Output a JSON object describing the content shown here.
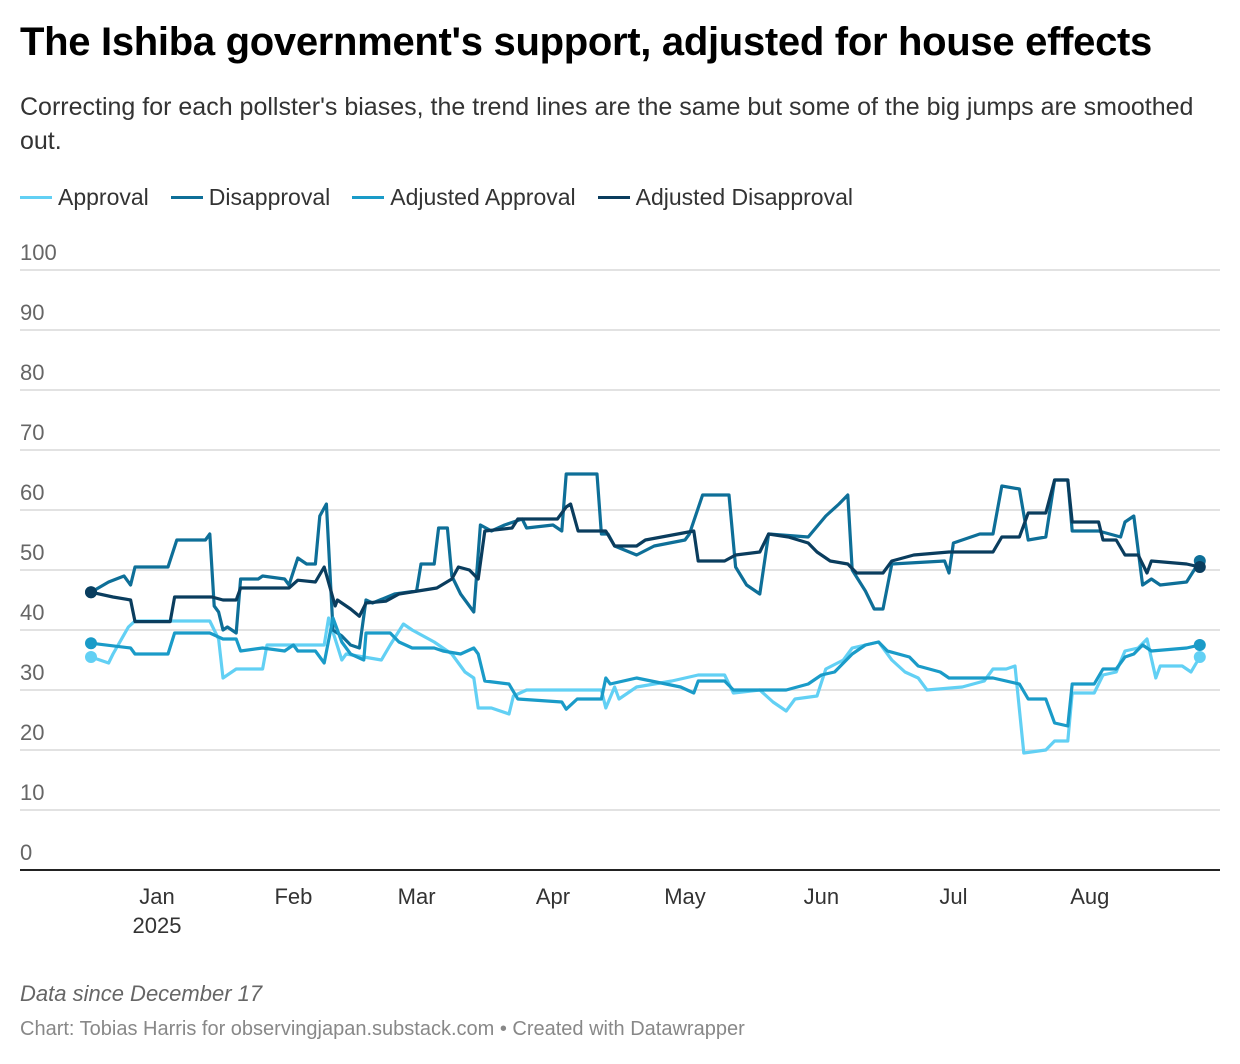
{
  "chart_data": {
    "type": "line",
    "title": "The Ishiba government's support, adjusted for house effects",
    "subtitle": "Correcting for each pollster's biases, the trend lines are the same but some of the big jumps are smoothed out.",
    "x_unit": "days since December 17, 2024",
    "xlim": [
      0,
      252
    ],
    "ylim": [
      0,
      100
    ],
    "yticks": [
      0,
      10,
      20,
      30,
      40,
      50,
      60,
      70,
      80,
      90,
      100
    ],
    "xticks": [
      {
        "day": 15,
        "label": "Jan",
        "sublabel": "2025"
      },
      {
        "day": 46,
        "label": "Feb"
      },
      {
        "day": 74,
        "label": "Mar"
      },
      {
        "day": 105,
        "label": "Apr"
      },
      {
        "day": 135,
        "label": "May"
      },
      {
        "day": 166,
        "label": "Jun"
      },
      {
        "day": 196,
        "label": "Jul"
      },
      {
        "day": 227,
        "label": "Aug"
      }
    ],
    "legend_position": "top-left",
    "grid": true,
    "series": [
      {
        "name": "Approval",
        "color": "#62d0f4",
        "points": [
          [
            0,
            35.5
          ],
          [
            4,
            34.5
          ],
          [
            5,
            36
          ],
          [
            8.5,
            40.5
          ],
          [
            10,
            41.5
          ],
          [
            27,
            41.5
          ],
          [
            29,
            38.5
          ],
          [
            30,
            32
          ],
          [
            33,
            33.5
          ],
          [
            39,
            33.5
          ],
          [
            40,
            37.5
          ],
          [
            53,
            37.5
          ],
          [
            54,
            42
          ],
          [
            57,
            35
          ],
          [
            58,
            36
          ],
          [
            66,
            35
          ],
          [
            68,
            37.5
          ],
          [
            71,
            41
          ],
          [
            73,
            40
          ],
          [
            78,
            38
          ],
          [
            82,
            36
          ],
          [
            85,
            33
          ],
          [
            87,
            32
          ],
          [
            88,
            27
          ],
          [
            91,
            27
          ],
          [
            95,
            26
          ],
          [
            96,
            29
          ],
          [
            99,
            30
          ],
          [
            116,
            30
          ],
          [
            117,
            27
          ],
          [
            119,
            30.5
          ],
          [
            120,
            28.5
          ],
          [
            124,
            30.5
          ],
          [
            132,
            31.5
          ],
          [
            138,
            32.5
          ],
          [
            144,
            32.5
          ],
          [
            146,
            29.5
          ],
          [
            152,
            30
          ],
          [
            155,
            28
          ],
          [
            158,
            26.5
          ],
          [
            160,
            28.5
          ],
          [
            165,
            29
          ],
          [
            167,
            33.5
          ],
          [
            171,
            35
          ],
          [
            173,
            37
          ],
          [
            179,
            38
          ],
          [
            182,
            35
          ],
          [
            185,
            33
          ],
          [
            188,
            32
          ],
          [
            190,
            30
          ],
          [
            198,
            30.5
          ],
          [
            203,
            31.5
          ],
          [
            205,
            33.5
          ],
          [
            208,
            33.5
          ],
          [
            210,
            34
          ],
          [
            212,
            19.5
          ],
          [
            217,
            20
          ],
          [
            219,
            21.5
          ],
          [
            222,
            21.5
          ],
          [
            223,
            29.5
          ],
          [
            228,
            29.5
          ],
          [
            230,
            32.5
          ],
          [
            233,
            33
          ],
          [
            235,
            36.5
          ],
          [
            238,
            37
          ],
          [
            240,
            38.5
          ],
          [
            242,
            32
          ],
          [
            243,
            34
          ],
          [
            248,
            34
          ],
          [
            250,
            33
          ],
          [
            252,
            35.5
          ]
        ]
      },
      {
        "name": "Disapproval",
        "color": "#0e6f98",
        "points": [
          [
            0,
            46.3
          ],
          [
            4,
            48
          ],
          [
            7.5,
            49
          ],
          [
            9,
            47.5
          ],
          [
            10,
            50.5
          ],
          [
            17.5,
            50.5
          ],
          [
            19.5,
            55
          ],
          [
            26,
            55
          ],
          [
            27,
            56
          ],
          [
            28,
            44
          ],
          [
            29,
            43
          ],
          [
            30,
            40
          ],
          [
            31,
            40.5
          ],
          [
            33,
            39.5
          ],
          [
            34,
            48.5
          ],
          [
            38,
            48.5
          ],
          [
            39,
            49
          ],
          [
            44,
            48.5
          ],
          [
            45,
            47.5
          ],
          [
            47,
            52
          ],
          [
            49,
            51
          ],
          [
            51,
            51
          ],
          [
            52,
            59
          ],
          [
            53.5,
            61
          ],
          [
            55,
            40
          ],
          [
            57,
            39
          ],
          [
            59,
            37.5
          ],
          [
            61,
            37
          ],
          [
            62.5,
            45
          ],
          [
            64,
            44.5
          ],
          [
            69,
            46
          ],
          [
            74,
            46.5
          ],
          [
            75,
            51
          ],
          [
            78,
            51
          ],
          [
            79,
            57
          ],
          [
            81,
            57
          ],
          [
            82,
            49
          ],
          [
            84,
            46
          ],
          [
            87,
            43
          ],
          [
            88.5,
            57.5
          ],
          [
            91,
            56.5
          ],
          [
            94,
            57.5
          ],
          [
            98,
            58.5
          ],
          [
            99,
            57
          ],
          [
            105,
            57.5
          ],
          [
            107,
            56.5
          ],
          [
            108,
            66
          ],
          [
            115,
            66
          ],
          [
            116,
            56
          ],
          [
            117.5,
            56
          ],
          [
            119,
            54
          ],
          [
            124,
            52.5
          ],
          [
            128,
            54
          ],
          [
            135,
            55
          ],
          [
            136,
            56
          ],
          [
            139,
            62.5
          ],
          [
            145,
            62.5
          ],
          [
            146.5,
            50.5
          ],
          [
            149,
            47.5
          ],
          [
            152,
            46
          ],
          [
            154,
            56
          ],
          [
            163,
            55.5
          ],
          [
            167,
            59
          ],
          [
            170,
            61
          ],
          [
            172,
            62.5
          ],
          [
            173,
            50
          ],
          [
            176,
            46.5
          ],
          [
            178,
            43.5
          ],
          [
            180,
            43.5
          ],
          [
            182,
            51
          ],
          [
            194,
            51.5
          ],
          [
            195,
            49.5
          ],
          [
            196,
            54.5
          ],
          [
            202,
            56
          ],
          [
            205,
            56
          ],
          [
            207,
            64
          ],
          [
            211,
            63.5
          ],
          [
            213,
            55
          ],
          [
            217,
            55.5
          ],
          [
            219,
            65
          ],
          [
            222,
            65
          ],
          [
            223,
            56.5
          ],
          [
            229,
            56.5
          ],
          [
            234,
            55.5
          ],
          [
            235,
            58
          ],
          [
            237,
            59
          ],
          [
            239,
            47.5
          ],
          [
            241,
            48.5
          ],
          [
            243,
            47.5
          ],
          [
            249,
            48
          ],
          [
            252,
            51.5
          ]
        ]
      },
      {
        "name": "Adjusted Approval",
        "color": "#1a9bc8",
        "points": [
          [
            0,
            37.8
          ],
          [
            9,
            37
          ],
          [
            10,
            36
          ],
          [
            17.5,
            36
          ],
          [
            19,
            39.5
          ],
          [
            27,
            39.5
          ],
          [
            30,
            38.5
          ],
          [
            33,
            38.5
          ],
          [
            34,
            36.5
          ],
          [
            39,
            37
          ],
          [
            44,
            36.5
          ],
          [
            46,
            37.5
          ],
          [
            47,
            36.5
          ],
          [
            51,
            36.5
          ],
          [
            53,
            34.5
          ],
          [
            55,
            42
          ],
          [
            57,
            38
          ],
          [
            59,
            36
          ],
          [
            62,
            35
          ],
          [
            62.5,
            39.5
          ],
          [
            68,
            39.5
          ],
          [
            70,
            38
          ],
          [
            73,
            37
          ],
          [
            78,
            37
          ],
          [
            80,
            36.5
          ],
          [
            84,
            36
          ],
          [
            87,
            37
          ],
          [
            88,
            36
          ],
          [
            89.5,
            31.5
          ],
          [
            95,
            31
          ],
          [
            97,
            28.5
          ],
          [
            107,
            28
          ],
          [
            108,
            26.8
          ],
          [
            110.5,
            28.5
          ],
          [
            116,
            28.5
          ],
          [
            117,
            32
          ],
          [
            118,
            31
          ],
          [
            124,
            32
          ],
          [
            134,
            30.5
          ],
          [
            137,
            29.5
          ],
          [
            138,
            31.5
          ],
          [
            144,
            31.5
          ],
          [
            146,
            30
          ],
          [
            153,
            30
          ],
          [
            158,
            30
          ],
          [
            163,
            31
          ],
          [
            166,
            32.5
          ],
          [
            169,
            33
          ],
          [
            173,
            36
          ],
          [
            176,
            37.5
          ],
          [
            179,
            38
          ],
          [
            181,
            36.5
          ],
          [
            186,
            35.5
          ],
          [
            188,
            34
          ],
          [
            193,
            33
          ],
          [
            195,
            32
          ],
          [
            205,
            32
          ],
          [
            211,
            31
          ],
          [
            213,
            28.5
          ],
          [
            217,
            28.5
          ],
          [
            219,
            24.5
          ],
          [
            222,
            24
          ],
          [
            223,
            31
          ],
          [
            228,
            31
          ],
          [
            230,
            33.5
          ],
          [
            233,
            33.5
          ],
          [
            235,
            35.5
          ],
          [
            237,
            36
          ],
          [
            239,
            37.5
          ],
          [
            241,
            36.5
          ],
          [
            249,
            37
          ],
          [
            252,
            37.5
          ]
        ]
      },
      {
        "name": "Adjusted Disapproval",
        "color": "#0a3d5e",
        "points": [
          [
            0,
            46.3
          ],
          [
            5,
            45.5
          ],
          [
            9,
            45
          ],
          [
            10,
            41.4
          ],
          [
            18,
            41.4
          ],
          [
            19,
            45.5
          ],
          [
            27.5,
            45.5
          ],
          [
            30,
            45
          ],
          [
            33,
            45
          ],
          [
            34,
            47
          ],
          [
            45,
            47
          ],
          [
            47,
            48.3
          ],
          [
            51,
            48
          ],
          [
            53,
            50.5
          ],
          [
            55.5,
            44
          ],
          [
            56,
            45
          ],
          [
            59,
            43.5
          ],
          [
            61,
            42.3
          ],
          [
            62.5,
            44.5
          ],
          [
            67,
            44.8
          ],
          [
            70,
            46
          ],
          [
            78.6,
            47
          ],
          [
            82,
            48.5
          ],
          [
            83.5,
            50.5
          ],
          [
            86,
            50
          ],
          [
            88,
            48.5
          ],
          [
            89.5,
            56.5
          ],
          [
            95.7,
            57
          ],
          [
            97,
            58.5
          ],
          [
            106,
            58.5
          ],
          [
            108,
            60.5
          ],
          [
            109,
            61
          ],
          [
            110.7,
            56.5
          ],
          [
            117,
            56.5
          ],
          [
            119,
            54
          ],
          [
            124,
            54
          ],
          [
            126,
            55
          ],
          [
            137,
            56.5
          ],
          [
            138,
            51.5
          ],
          [
            144,
            51.5
          ],
          [
            146.5,
            52.5
          ],
          [
            152,
            53
          ],
          [
            154,
            56
          ],
          [
            158.5,
            55.5
          ],
          [
            163,
            54.5
          ],
          [
            165,
            53
          ],
          [
            168,
            51.5
          ],
          [
            172,
            51
          ],
          [
            174,
            49.5
          ],
          [
            180,
            49.5
          ],
          [
            182,
            51.5
          ],
          [
            187,
            52.5
          ],
          [
            195,
            53
          ],
          [
            205,
            53
          ],
          [
            207,
            55.5
          ],
          [
            211,
            55.5
          ],
          [
            213,
            59.5
          ],
          [
            217,
            59.5
          ],
          [
            219,
            65
          ],
          [
            222,
            65
          ],
          [
            223,
            58
          ],
          [
            229,
            58
          ],
          [
            230,
            55
          ],
          [
            233,
            55
          ],
          [
            235,
            52.5
          ],
          [
            238,
            52.5
          ],
          [
            240,
            49.5
          ],
          [
            241,
            51.5
          ],
          [
            249,
            51
          ],
          [
            252,
            50.5
          ]
        ]
      }
    ]
  },
  "note": "Data since December 17",
  "credit": "Chart: Tobias Harris for observingjapan.substack.com • Created with Datawrapper"
}
